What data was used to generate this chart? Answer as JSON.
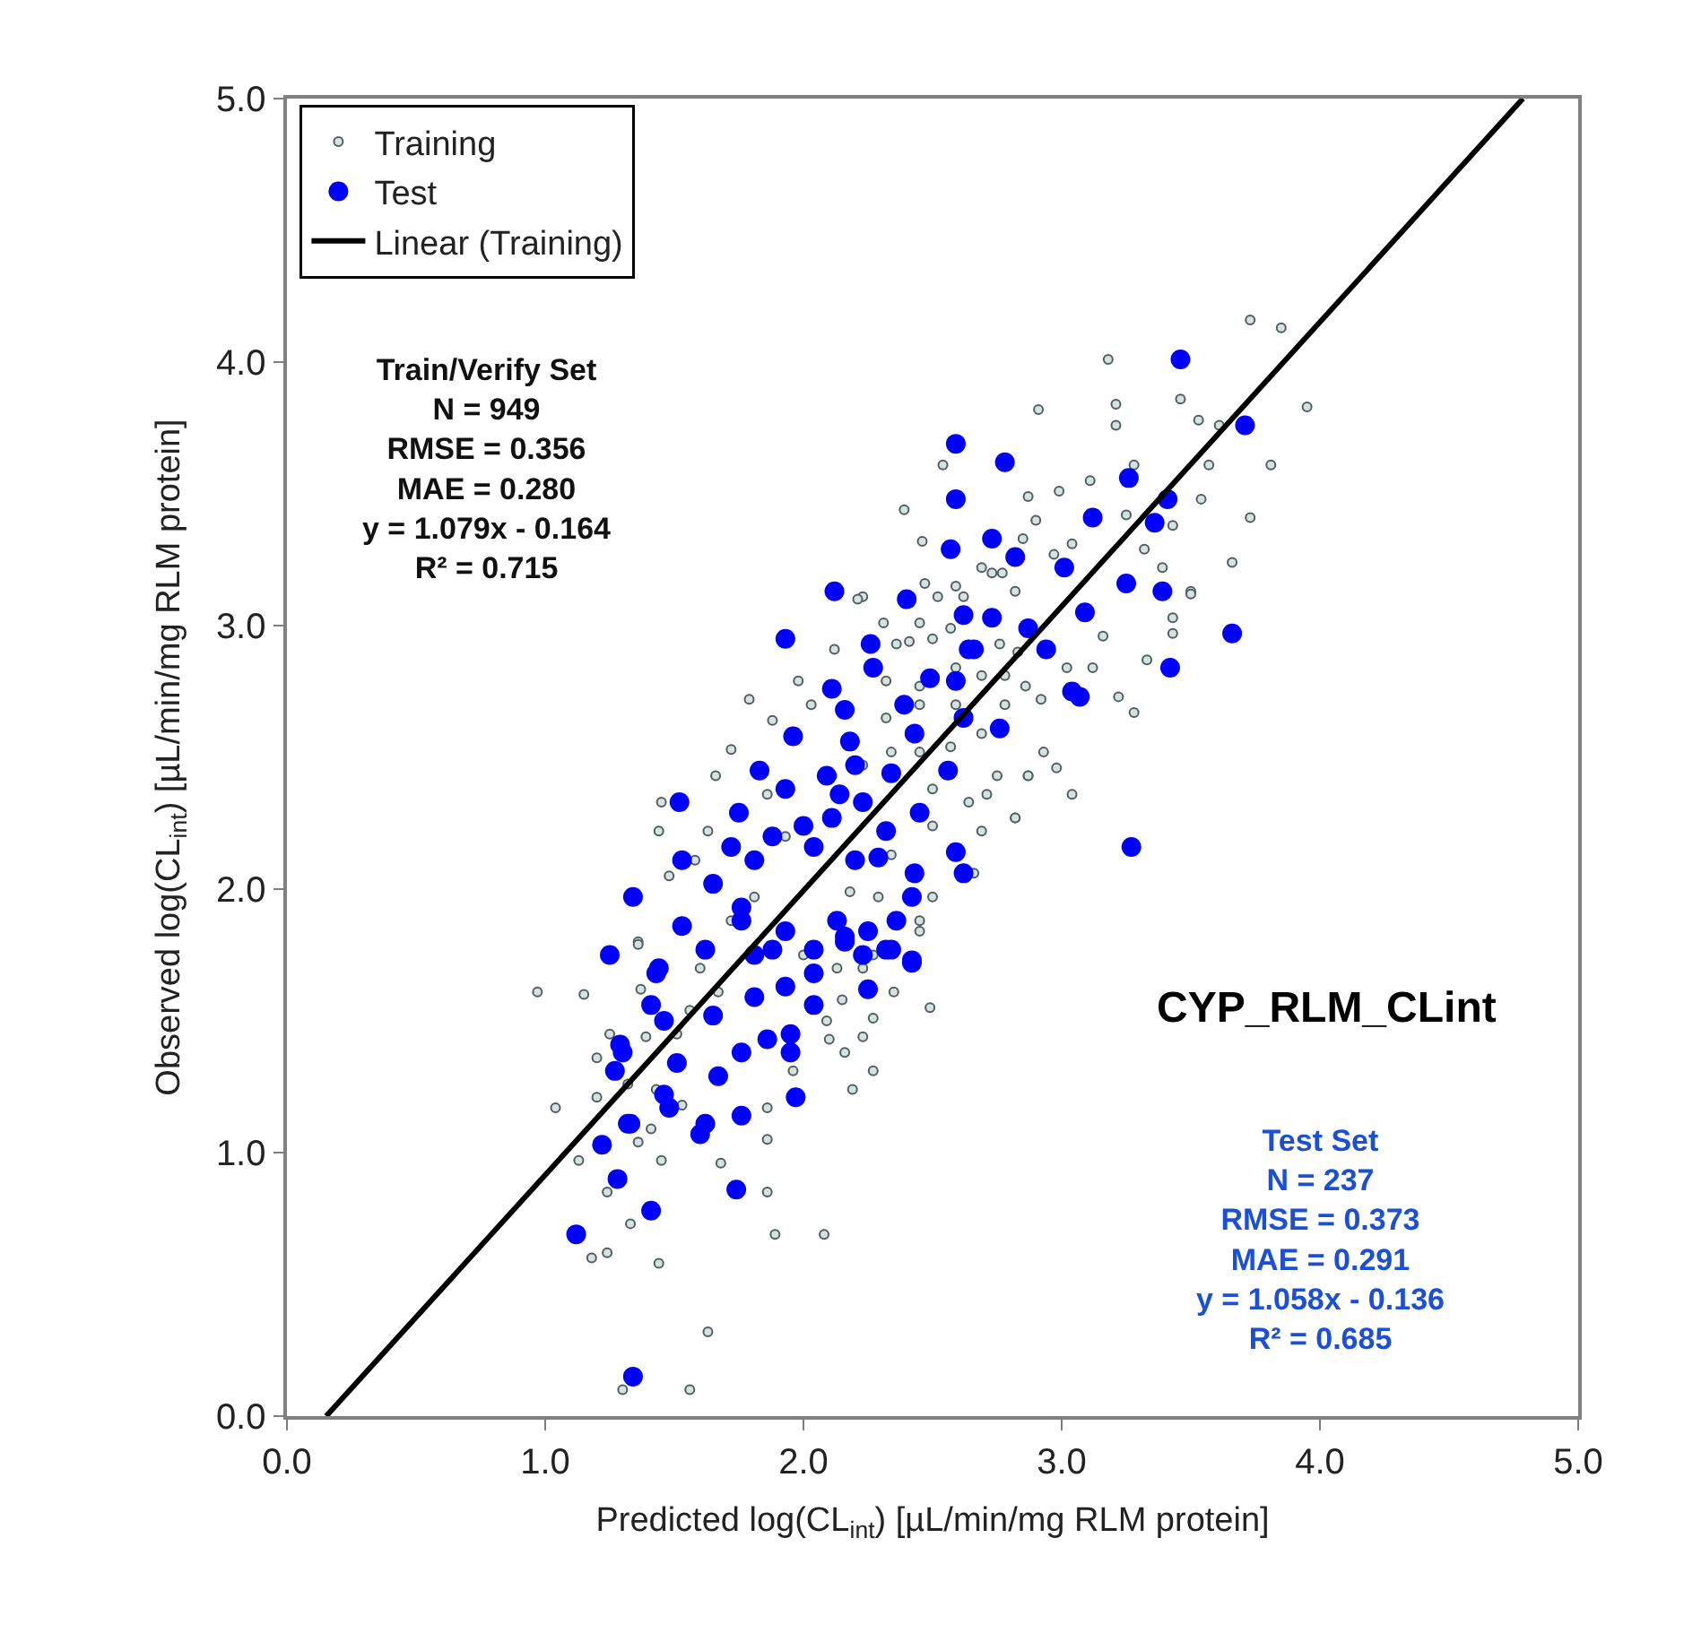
{
  "chart_data": {
    "type": "scatter",
    "xlabel": "Predicted log(CL$_{int}$) [µL/min/mg RLM protein]",
    "ylabel": "Observed log(CL$_{int}$) [µL/min/mg RLM protein]",
    "xlim": [
      0,
      5
    ],
    "ylim": [
      0,
      5
    ],
    "xticks": [
      {
        "value": 0,
        "label": "0.0"
      },
      {
        "value": 1,
        "label": "1.0"
      },
      {
        "value": 2,
        "label": "2.0"
      },
      {
        "value": 3,
        "label": "3.0"
      },
      {
        "value": 4,
        "label": "4.0"
      },
      {
        "value": 5,
        "label": "5.0"
      }
    ],
    "yticks": [
      {
        "value": 0,
        "label": "0.0"
      },
      {
        "value": 1,
        "label": "1.0"
      },
      {
        "value": 2,
        "label": "2.0"
      },
      {
        "value": 3,
        "label": "3.0"
      },
      {
        "value": 4,
        "label": "4.0"
      },
      {
        "value": 5,
        "label": "5.0"
      }
    ],
    "legend": "top left",
    "annotations": [
      "Train/Verify Set\nN = 949\nRMSE = 0.356\nMAE = 0.280\ny = 1.079x - 0.164\nR² = 0.715",
      "CYP_RLM_CLint",
      "Test Set\nN = 237\nRMSE = 0.373\nMAE = 0.291\ny = 1.058x - 0.136\nR² = 0.685"
    ],
    "series": [
      {
        "name": "Training",
        "color": "#4f5f5f",
        "marker": "circle",
        "x": [
          3.73,
          3.85,
          3.95,
          3.81,
          3.73,
          3.66,
          3.18,
          3.46,
          3.21,
          3.21,
          2.91,
          3.53,
          3.61,
          2.54,
          2.39,
          2.46,
          2.87,
          2.99,
          3.11,
          3.28,
          3.57,
          3.54,
          3.43,
          3.32,
          3.39,
          3.5,
          3.43,
          3.43,
          3.16,
          3.33,
          3.22,
          3.28,
          3.12,
          3.02,
          2.92,
          2.86,
          2.93,
          2.98,
          3.04,
          2.87,
          2.75,
          2.82,
          3.25,
          2.9,
          3.04,
          2.97,
          2.85,
          2.77,
          2.69,
          2.62,
          2.52,
          2.45,
          2.36,
          2.5,
          2.76,
          2.83,
          2.78,
          2.69,
          2.59,
          2.45,
          2.32,
          2.23,
          2.59,
          2.78,
          2.69,
          2.57,
          2.45,
          2.34,
          2.5,
          2.64,
          2.71,
          3.5,
          1.04,
          1.15,
          1.2,
          1.2,
          1.13,
          1.24,
          1.18,
          1.24,
          1.33,
          1.44,
          1.3,
          1.56,
          1.63,
          1.89,
          1.86,
          1.68,
          1.86,
          1.45,
          1.36,
          1.41,
          2.19,
          2.27,
          2.23,
          2.16,
          2.1,
          2.27,
          2.49,
          2.35,
          2.15,
          2.09,
          1.96,
          1.86,
          1.36,
          1.37,
          1.51,
          1.43,
          1.53,
          1.32,
          2.45,
          2.27,
          2.13,
          1.67,
          1.56,
          1.39,
          1.25,
          1.45,
          1.44,
          1.48,
          1.36,
          1.58,
          1.63,
          1.66,
          1.72,
          1.79,
          1.88,
          1.98,
          2.03,
          2.12,
          2.21,
          2.31,
          2.41,
          2.47,
          2.59,
          2.73,
          2.82,
          2.87,
          2.82,
          2.69,
          2.5,
          2.66,
          2.5,
          2.29,
          2.11,
          1.93,
          1.81,
          1.72,
          1.6,
          1.86,
          2.23,
          2.45,
          2.57,
          2.32,
          2.34,
          2.18,
          2.0,
          2.45,
          2.23,
          0.97,
          2.08
        ],
        "values": [
          4.16,
          4.13,
          3.83,
          3.61,
          3.41,
          3.24,
          4.01,
          3.86,
          3.84,
          3.76,
          3.82,
          3.78,
          3.76,
          3.61,
          3.44,
          3.32,
          3.49,
          3.51,
          3.55,
          3.61,
          3.61,
          3.48,
          3.38,
          3.29,
          3.22,
          3.13,
          3.03,
          2.97,
          2.96,
          2.87,
          2.73,
          2.67,
          2.84,
          2.84,
          2.72,
          2.77,
          2.52,
          2.46,
          2.36,
          2.43,
          2.43,
          2.27,
          3.42,
          3.4,
          3.31,
          3.27,
          3.33,
          3.2,
          3.22,
          3.11,
          3.11,
          3.01,
          2.93,
          2.95,
          2.93,
          2.9,
          2.81,
          2.81,
          2.84,
          2.7,
          2.79,
          3.11,
          2.7,
          2.7,
          2.59,
          2.54,
          2.52,
          2.52,
          2.38,
          2.33,
          2.36,
          3.12,
          1.17,
          1.6,
          1.36,
          1.21,
          0.97,
          0.85,
          0.6,
          0.62,
          0.73,
          0.58,
          0.1,
          0.1,
          0.32,
          0.69,
          0.85,
          0.96,
          1.05,
          0.97,
          1.04,
          1.09,
          1.24,
          1.31,
          1.44,
          1.38,
          1.43,
          1.51,
          1.55,
          1.61,
          1.58,
          1.5,
          1.31,
          1.17,
          1.8,
          1.62,
          1.45,
          1.24,
          1.18,
          1.26,
          1.88,
          1.75,
          1.7,
          1.61,
          1.54,
          1.44,
          1.45,
          2.33,
          2.22,
          2.05,
          1.79,
          2.11,
          2.22,
          2.43,
          2.53,
          2.72,
          2.64,
          2.79,
          2.7,
          2.91,
          3.1,
          3.01,
          2.94,
          3.16,
          3.15,
          3.2,
          3.13,
          2.43,
          2.27,
          2.22,
          2.24,
          2.06,
          1.97,
          1.97,
          2.43,
          2.2,
          1.97,
          1.88,
          1.7,
          2.36,
          2.47,
          2.77,
          2.99,
          2.65,
          2.13,
          1.99,
          1.75,
          1.84,
          1.7,
          1.61,
          0.69
        ]
      },
      {
        "name": "Test",
        "color": "#0000ff",
        "marker": "circle",
        "x": [
          1.34,
          1.12,
          1.41,
          1.28,
          1.74,
          1.22,
          1.33,
          1.25,
          1.97,
          1.76,
          1.6,
          1.29,
          1.52,
          1.34,
          2.16,
          2.42,
          2.12,
          1.93,
          2.59,
          2.78,
          2.59,
          2.57,
          2.73,
          2.82,
          3.46,
          3.71,
          3.26,
          3.41,
          3.12,
          3.36,
          3.01,
          3.25,
          3.39,
          3.09,
          3.66,
          3.42,
          2.4,
          2.62,
          2.73,
          2.87,
          2.64,
          2.94,
          3.07,
          3.04,
          3.27,
          1.43,
          1.53,
          1.83,
          2.26,
          2.27,
          2.11,
          2.16,
          1.96,
          2.18,
          2.2,
          2.09,
          1.93,
          2.14,
          2.23,
          2.34,
          2.43,
          2.39,
          2.49,
          2.59,
          2.66,
          2.76,
          2.62,
          2.56,
          2.45,
          2.32,
          2.11,
          2.0,
          1.88,
          1.75,
          1.72,
          1.81,
          2.04,
          2.2,
          2.29,
          2.43,
          2.59,
          2.62,
          2.42,
          2.36,
          2.25,
          2.13,
          1.93,
          1.76,
          1.65,
          1.53,
          1.81,
          2.04,
          2.23,
          2.42,
          2.32,
          1.44,
          1.62,
          1.76,
          1.88,
          1.93,
          2.04,
          2.04,
          1.41,
          1.46,
          1.65,
          1.81,
          1.86,
          1.95,
          1.95,
          1.76,
          1.67,
          1.51,
          1.3,
          1.27,
          1.46,
          1.48,
          1.62,
          1.32,
          2.25,
          2.34,
          2.16
        ],
        "values": [
          0.15,
          0.69,
          0.78,
          0.9,
          0.86,
          1.03,
          1.11,
          1.75,
          1.21,
          1.14,
          1.07,
          1.41,
          2.33,
          1.97,
          1.8,
          1.73,
          3.13,
          2.95,
          3.69,
          3.62,
          3.48,
          3.29,
          3.33,
          3.26,
          4.01,
          3.76,
          3.56,
          3.48,
          3.41,
          3.39,
          3.22,
          3.16,
          3.13,
          3.05,
          2.97,
          2.84,
          3.1,
          3.04,
          3.03,
          2.99,
          2.91,
          2.91,
          2.73,
          2.75,
          2.16,
          1.68,
          2.11,
          2.45,
          2.93,
          2.84,
          2.76,
          2.68,
          2.58,
          2.56,
          2.47,
          2.43,
          2.38,
          2.36,
          2.33,
          2.44,
          2.59,
          2.7,
          2.8,
          2.79,
          2.91,
          2.61,
          2.65,
          2.45,
          2.29,
          2.22,
          2.27,
          2.24,
          2.2,
          2.29,
          2.16,
          2.11,
          2.16,
          2.11,
          2.12,
          2.06,
          2.14,
          2.06,
          1.97,
          1.88,
          1.84,
          1.88,
          1.84,
          1.93,
          2.02,
          1.86,
          1.75,
          1.77,
          1.75,
          1.72,
          1.77,
          1.7,
          1.77,
          1.88,
          1.77,
          1.63,
          1.68,
          1.56,
          1.56,
          1.5,
          1.52,
          1.59,
          1.43,
          1.45,
          1.38,
          1.38,
          1.29,
          1.34,
          1.38,
          1.31,
          1.22,
          1.17,
          1.11,
          1.11,
          1.62,
          1.77,
          1.82
        ]
      },
      {
        "name": "Linear (Training)",
        "type": "line",
        "marker": "none",
        "color": "#000000",
        "x": [
          0.152,
          4.786
        ],
        "values": [
          0,
          5
        ]
      }
    ]
  }
}
